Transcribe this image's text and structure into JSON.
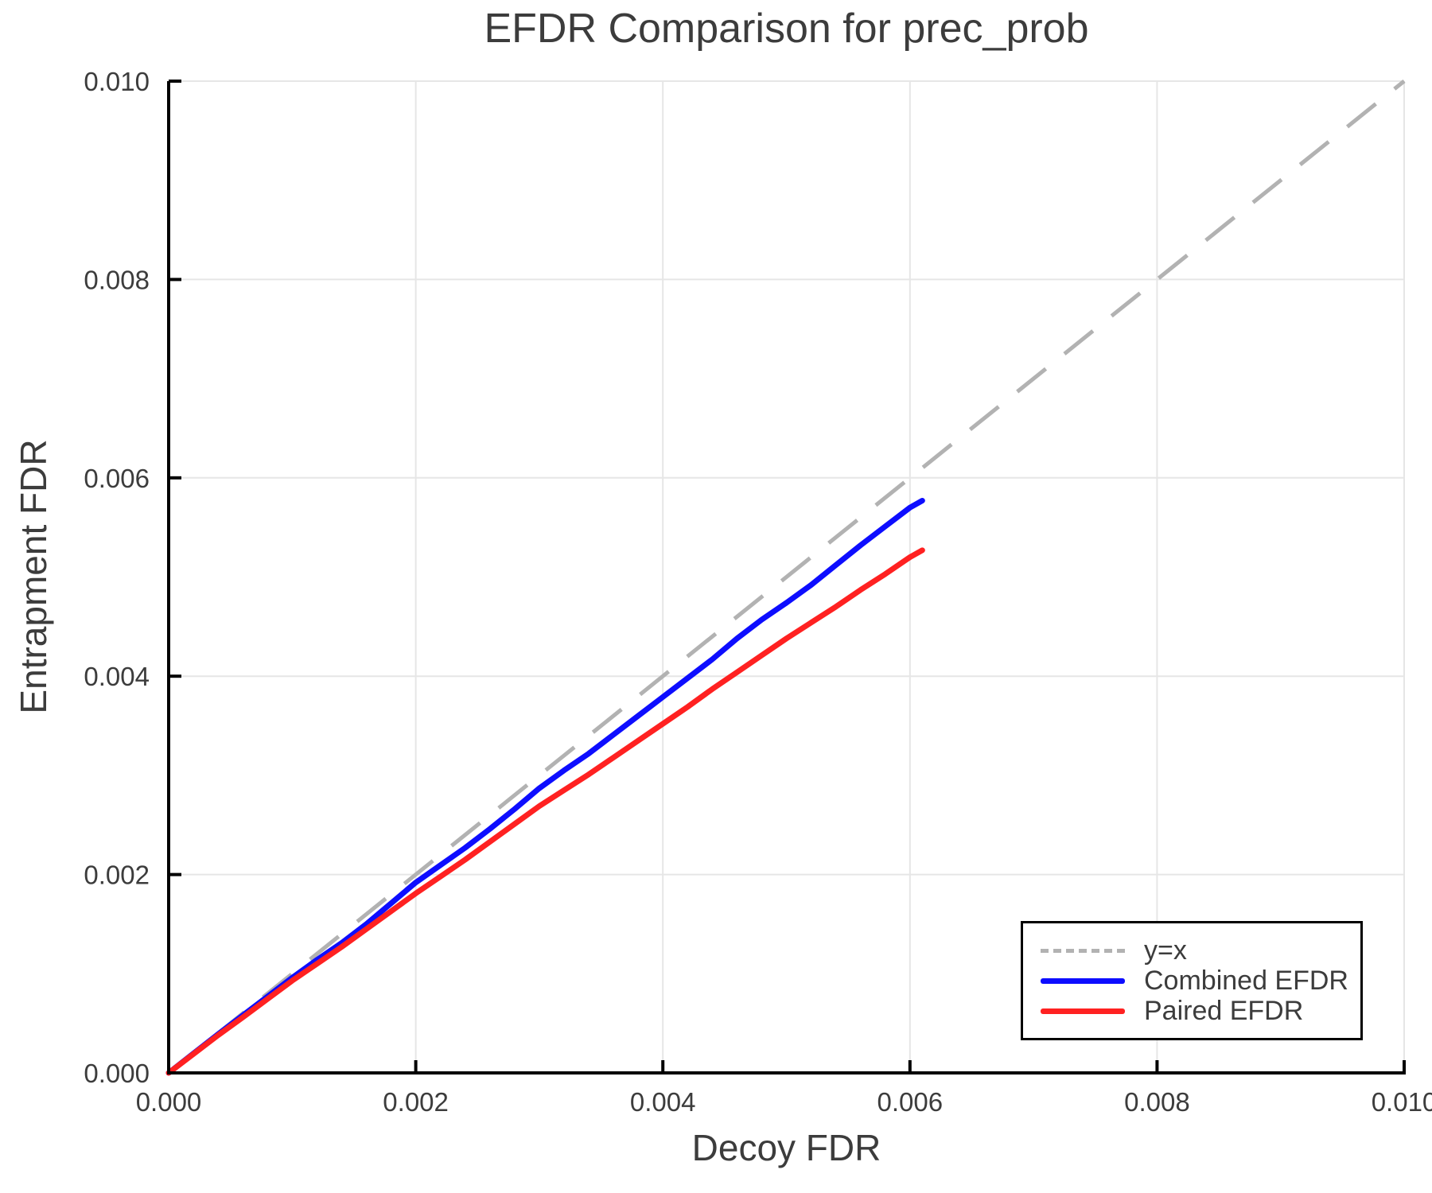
{
  "title": "EFDR Comparison for prec_prob",
  "axes": {
    "x_label": "Decoy FDR",
    "y_label": "Entrapment FDR"
  },
  "legend": {
    "items": [
      {
        "label": "y=x",
        "series_key": "reference"
      },
      {
        "label": "Combined EFDR",
        "series_key": "combined"
      },
      {
        "label": "Paired EFDR",
        "series_key": "paired"
      }
    ]
  },
  "colors": {
    "reference": "#b2b2b2",
    "combined": "#0d0dff",
    "paired": "#ff2121",
    "grid": "#e6e6e6",
    "spine": "#000000",
    "text": "#3c3c3c"
  },
  "chart_data": {
    "type": "line",
    "title": "EFDR Comparison for prec_prob",
    "xlabel": "Decoy FDR",
    "ylabel": "Entrapment FDR",
    "xlim": [
      0.0,
      0.01
    ],
    "ylim": [
      0.0,
      0.01
    ],
    "grid": true,
    "legend_position": "bottom-right",
    "xticks": [
      0.0,
      0.002,
      0.004,
      0.006,
      0.008,
      0.01
    ],
    "xtick_labels": [
      "0.000",
      "0.002",
      "0.004",
      "0.006",
      "0.008",
      "0.010"
    ],
    "yticks": [
      0.0,
      0.002,
      0.004,
      0.006,
      0.008,
      0.01
    ],
    "ytick_labels": [
      "0.000",
      "0.002",
      "0.004",
      "0.006",
      "0.008",
      "0.010"
    ],
    "reference_line": {
      "name": "y=x",
      "style": "dashed",
      "from": [
        0.0,
        0.0
      ],
      "to": [
        0.01,
        0.01
      ]
    },
    "x": [
      0.0,
      0.0002,
      0.0004,
      0.0006,
      0.0008,
      0.001,
      0.0012,
      0.0014,
      0.0016,
      0.0018,
      0.002,
      0.0022,
      0.0024,
      0.0026,
      0.0028,
      0.003,
      0.0032,
      0.0034,
      0.0036,
      0.0038,
      0.004,
      0.0042,
      0.0044,
      0.0046,
      0.0048,
      0.005,
      0.0052,
      0.0054,
      0.0056,
      0.0058,
      0.006,
      0.0061
    ],
    "series": [
      {
        "name": "Combined EFDR",
        "values": [
          0.0,
          0.000195,
          0.00039,
          0.00058,
          0.00077,
          0.00096,
          0.00114,
          0.00131,
          0.0015,
          0.00171,
          0.00192,
          0.002095,
          0.00227,
          0.00246,
          0.00266,
          0.00287,
          0.00305,
          0.00322,
          0.00341,
          0.0036,
          0.00379,
          0.00398,
          0.00417,
          0.00438,
          0.00457,
          0.00474,
          0.00492,
          0.00512,
          0.00532,
          0.00551,
          0.0057,
          0.00577
        ]
      },
      {
        "name": "Paired EFDR",
        "values": [
          0.0,
          0.00019,
          0.00038,
          0.00056,
          0.000745,
          0.00093,
          0.0011,
          0.00127,
          0.00145,
          0.00163,
          0.00181,
          0.00198,
          0.00215,
          0.00233,
          0.00251,
          0.00269,
          0.00285,
          0.00301,
          0.00318,
          0.00335,
          0.00352,
          0.00369,
          0.00387,
          0.00404,
          0.00421,
          0.00438,
          0.00454,
          0.0047,
          0.00487,
          0.00503,
          0.0052,
          0.00527
        ]
      }
    ]
  }
}
